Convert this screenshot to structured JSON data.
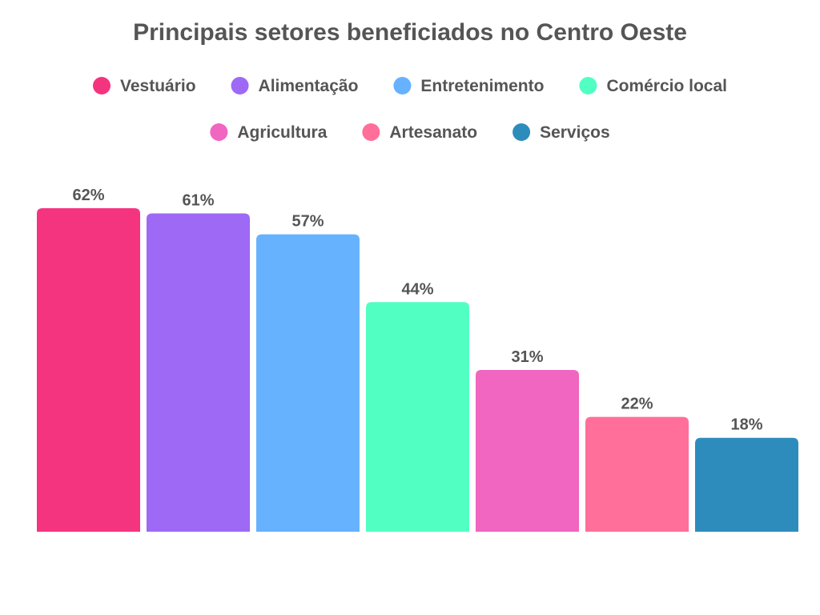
{
  "chart_data": {
    "type": "bar",
    "title": "Principais setores beneficiados no Centro Oeste",
    "categories": [
      "Vestuário",
      "Alimentação",
      "Entretenimento",
      "Comércio local",
      "Agricultura",
      "Artesanato",
      "Serviços"
    ],
    "values": [
      62,
      61,
      57,
      44,
      31,
      22,
      18
    ],
    "value_labels": [
      "62%",
      "61%",
      "57%",
      "44%",
      "31%",
      "22%",
      "18%"
    ],
    "colors": [
      "#f5347f",
      "#9e69f5",
      "#66b2ff",
      "#52ffc3",
      "#f066c0",
      "#ff6f9a",
      "#2e8cbd"
    ],
    "unit": "%",
    "xlabel": "",
    "ylabel": "",
    "ylim": [
      0,
      62
    ],
    "grid": false,
    "legend": "top"
  }
}
